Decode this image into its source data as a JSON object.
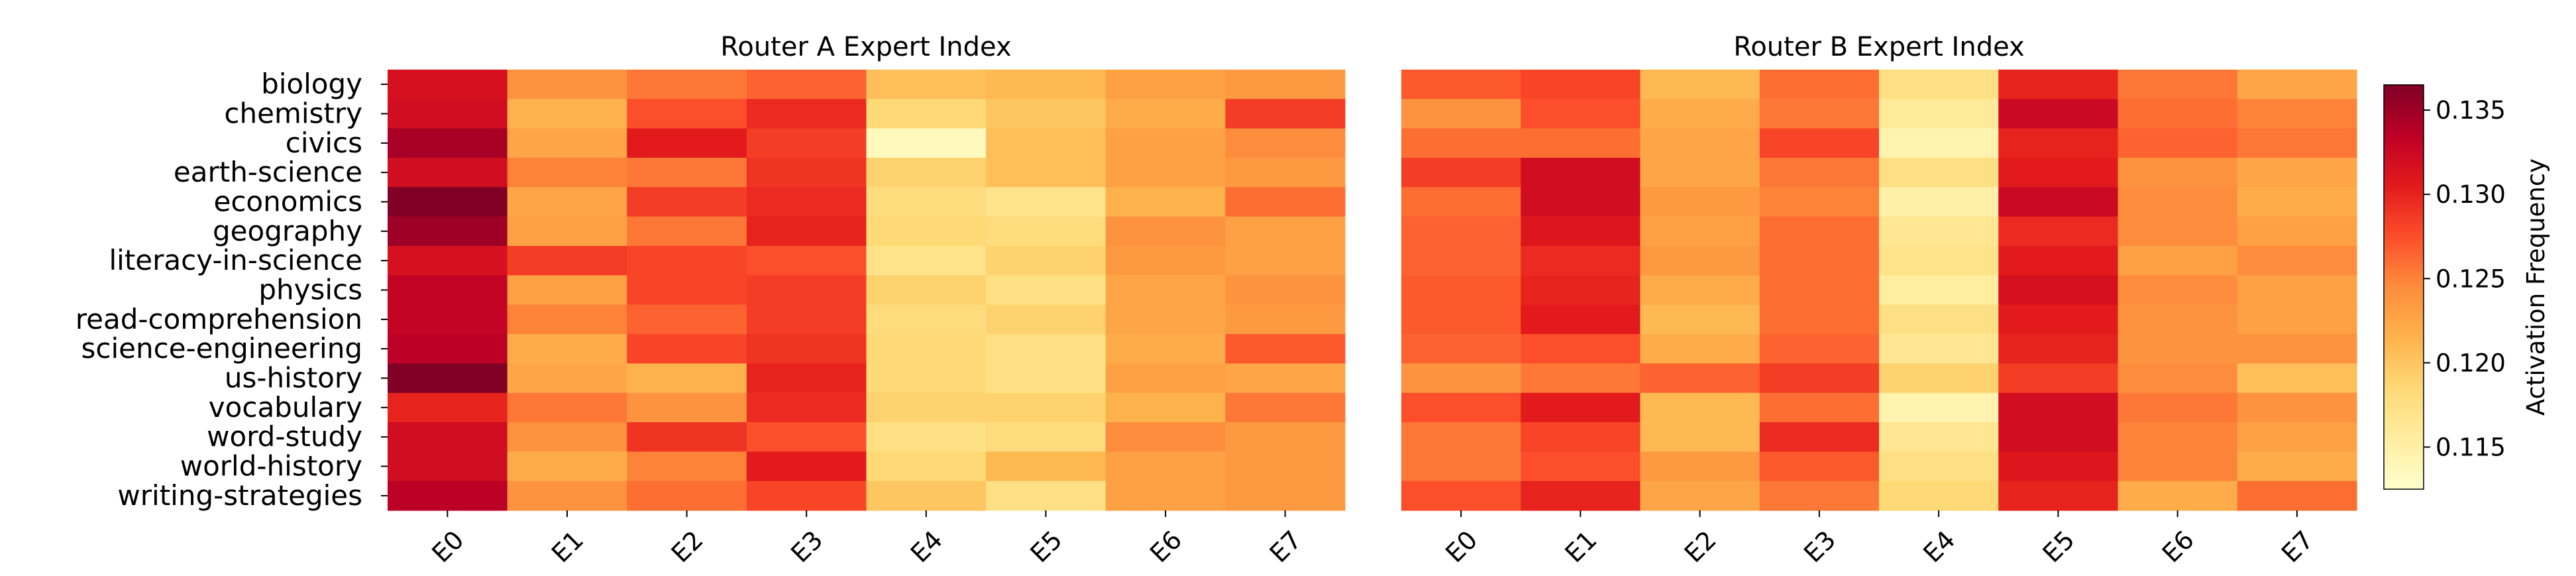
{
  "chart_data": [
    {
      "type": "heatmap",
      "title": "Router A Expert Index",
      "rows": [
        "biology",
        "chemistry",
        "civics",
        "earth-science",
        "economics",
        "geography",
        "literacy-in-science",
        "physics",
        "read-comprehension",
        "science-engineering",
        "us-history",
        "vocabulary",
        "word-study",
        "world-history",
        "writing-strategies"
      ],
      "columns": [
        "E0",
        "E1",
        "E2",
        "E3",
        "E4",
        "E5",
        "E6",
        "E7"
      ],
      "values": [
        [
          0.1315,
          0.124,
          0.1255,
          0.1265,
          0.1205,
          0.121,
          0.123,
          0.1235
        ],
        [
          0.132,
          0.1215,
          0.1275,
          0.1295,
          0.1185,
          0.12,
          0.122,
          0.1285
        ],
        [
          0.1345,
          0.1225,
          0.1305,
          0.1285,
          0.1135,
          0.1205,
          0.123,
          0.1245
        ],
        [
          0.132,
          0.125,
          0.1255,
          0.129,
          0.119,
          0.1205,
          0.123,
          0.1235
        ],
        [
          0.1365,
          0.1225,
          0.1285,
          0.1295,
          0.118,
          0.117,
          0.1215,
          0.126
        ],
        [
          0.135,
          0.123,
          0.1255,
          0.13,
          0.1185,
          0.118,
          0.124,
          0.123
        ],
        [
          0.1315,
          0.1285,
          0.128,
          0.1275,
          0.117,
          0.119,
          0.1235,
          0.123
        ],
        [
          0.133,
          0.123,
          0.128,
          0.1285,
          0.119,
          0.1175,
          0.1225,
          0.124
        ],
        [
          0.133,
          0.125,
          0.1265,
          0.1285,
          0.118,
          0.119,
          0.1225,
          0.1235
        ],
        [
          0.1335,
          0.122,
          0.128,
          0.129,
          0.1185,
          0.1175,
          0.122,
          0.127
        ],
        [
          0.137,
          0.1225,
          0.1215,
          0.13,
          0.1185,
          0.1175,
          0.123,
          0.1225
        ],
        [
          0.13,
          0.1255,
          0.124,
          0.1295,
          0.119,
          0.119,
          0.1215,
          0.1255
        ],
        [
          0.132,
          0.124,
          0.129,
          0.1275,
          0.1175,
          0.118,
          0.1245,
          0.1235
        ],
        [
          0.132,
          0.122,
          0.125,
          0.1305,
          0.1185,
          0.121,
          0.123,
          0.1235
        ],
        [
          0.1335,
          0.124,
          0.126,
          0.128,
          0.12,
          0.1175,
          0.123,
          0.1235
        ]
      ]
    },
    {
      "type": "heatmap",
      "title": "Router B Expert Index",
      "rows": [
        "biology",
        "chemistry",
        "civics",
        "earth-science",
        "economics",
        "geography",
        "literacy-in-science",
        "physics",
        "read-comprehension",
        "science-engineering",
        "us-history",
        "vocabulary",
        "word-study",
        "world-history",
        "writing-strategies"
      ],
      "columns": [
        "E0",
        "E1",
        "E2",
        "E3",
        "E4",
        "E5",
        "E6",
        "E7"
      ],
      "values": [
        [
          0.127,
          0.128,
          0.121,
          0.126,
          0.1175,
          0.13,
          0.1255,
          0.1225
        ],
        [
          0.124,
          0.1275,
          0.122,
          0.1255,
          0.116,
          0.1325,
          0.126,
          0.125
        ],
        [
          0.126,
          0.126,
          0.1225,
          0.128,
          0.1145,
          0.13,
          0.1265,
          0.1255
        ],
        [
          0.1285,
          0.132,
          0.1225,
          0.1255,
          0.1175,
          0.1305,
          0.124,
          0.1225
        ],
        [
          0.126,
          0.132,
          0.1235,
          0.125,
          0.115,
          0.1325,
          0.1245,
          0.122
        ],
        [
          0.1265,
          0.131,
          0.123,
          0.126,
          0.1165,
          0.1295,
          0.1245,
          0.123
        ],
        [
          0.1265,
          0.1295,
          0.1235,
          0.126,
          0.117,
          0.1305,
          0.123,
          0.1245
        ],
        [
          0.127,
          0.13,
          0.122,
          0.126,
          0.1155,
          0.1315,
          0.1245,
          0.123
        ],
        [
          0.127,
          0.1305,
          0.121,
          0.126,
          0.1175,
          0.1305,
          0.124,
          0.123
        ],
        [
          0.1265,
          0.1275,
          0.122,
          0.1265,
          0.1165,
          0.13,
          0.124,
          0.124
        ],
        [
          0.124,
          0.1255,
          0.1265,
          0.1285,
          0.119,
          0.1285,
          0.1245,
          0.1205
        ],
        [
          0.1275,
          0.1305,
          0.121,
          0.126,
          0.1145,
          0.132,
          0.1255,
          0.124
        ],
        [
          0.1255,
          0.128,
          0.121,
          0.1295,
          0.1165,
          0.132,
          0.125,
          0.123
        ],
        [
          0.1255,
          0.1275,
          0.1235,
          0.127,
          0.1175,
          0.131,
          0.125,
          0.122
        ],
        [
          0.1275,
          0.13,
          0.1225,
          0.1255,
          0.1185,
          0.13,
          0.122,
          0.126
        ]
      ]
    }
  ],
  "colorbar": {
    "label": "Activation Frequency",
    "min": 0.1125,
    "max": 0.1365,
    "ticks": [
      "0.115",
      "0.120",
      "0.125",
      "0.130",
      "0.135"
    ],
    "tick_values": [
      0.115,
      0.12,
      0.125,
      0.13,
      0.135
    ],
    "colormap": "YlOrRd",
    "colormap_stops": [
      "#ffffcc",
      "#ffeda0",
      "#fed976",
      "#feb24c",
      "#fd8d3c",
      "#fc4e2a",
      "#e31a1c",
      "#bd0026",
      "#800026"
    ]
  }
}
